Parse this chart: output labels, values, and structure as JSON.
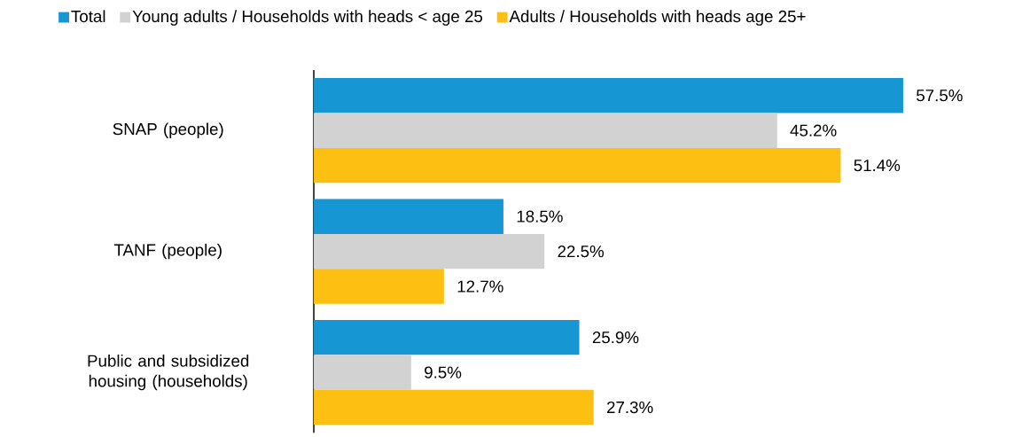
{
  "chart_data": {
    "type": "bar",
    "orientation": "horizontal",
    "categories": [
      "SNAP (people)",
      "TANF (people)",
      "Public and subsidized housing (households)"
    ],
    "series": [
      {
        "name": "Total",
        "color": "#1696d2",
        "values": [
          57.5,
          18.5,
          25.9
        ],
        "value_labels": [
          "57.5%",
          "18.5%",
          "25.9%"
        ]
      },
      {
        "name": "Young adults / Households with heads < age 25",
        "color": "#d2d2d2",
        "values": [
          45.2,
          22.5,
          9.5
        ],
        "value_labels": [
          "45.2%",
          "22.5%",
          "9.5%"
        ]
      },
      {
        "name": "Adults / Households with heads age 25+",
        "color": "#fdbf11",
        "values": [
          51.4,
          12.7,
          27.3
        ],
        "value_labels": [
          "51.4%",
          "12.7%",
          "27.3%"
        ]
      }
    ],
    "legend": "top"
  }
}
